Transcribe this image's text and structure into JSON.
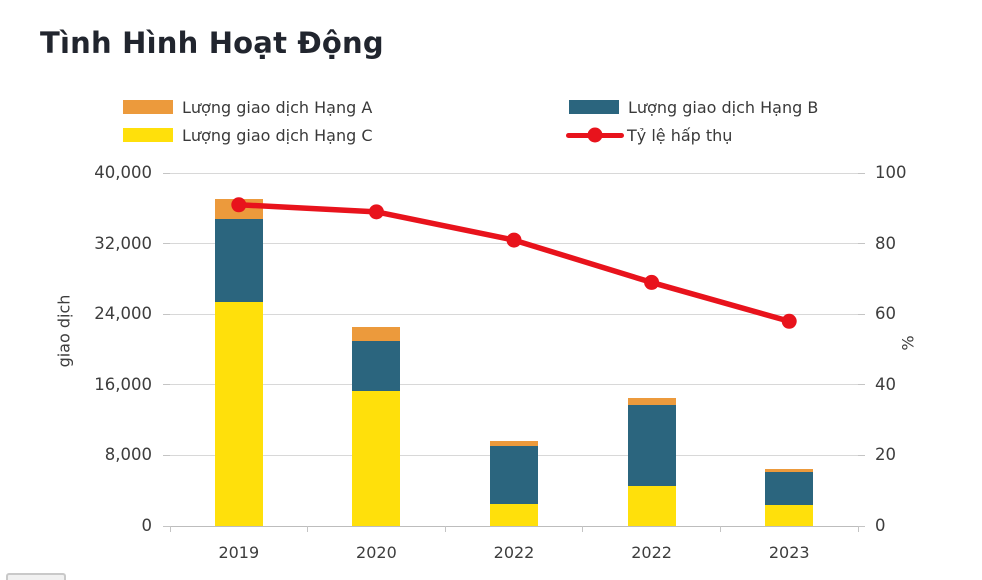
{
  "title": "Tình Hình Hoạt Động",
  "legend": {
    "items": [
      {
        "label": "Lượng giao dịch Hạng A",
        "color": "#EC9A3C",
        "marker": "rect"
      },
      {
        "label": "Lượng giao dịch Hạng B",
        "color": "#2B657E",
        "marker": "rect"
      },
      {
        "label": "Lượng giao dịch Hạng C",
        "color": "#FFE00B",
        "marker": "rect"
      },
      {
        "label": "Tỷ lệ hấp thụ",
        "color": "#E8131C",
        "marker": "line-dot"
      }
    ]
  },
  "chart_data": {
    "type": "combo",
    "subtype": "stacked-bar-plus-line",
    "categories": [
      "2019",
      "2020",
      "2022",
      "2022",
      "2023"
    ],
    "series": [
      {
        "name": "Lượng giao dịch Hạng A",
        "type": "bar",
        "color": "#EC9A3C",
        "values": [
          2300,
          1500,
          550,
          750,
          270
        ]
      },
      {
        "name": "Lượng giao dịch Hạng B",
        "type": "bar",
        "color": "#2B657E",
        "values": [
          9400,
          5700,
          6600,
          9200,
          3800
        ]
      },
      {
        "name": "Lượng giao dịch Hạng C",
        "type": "bar",
        "color": "#FFE00B",
        "values": [
          25400,
          15300,
          2450,
          4550,
          2350
        ]
      },
      {
        "name": "Tỷ lệ hấp thụ",
        "type": "line",
        "axis": "right",
        "color": "#E8131C",
        "values": [
          91,
          89,
          81,
          69,
          58
        ]
      }
    ],
    "bar_stack_order": [
      2,
      1,
      0
    ],
    "left_axis": {
      "label": "giao dịch",
      "min": 0,
      "max": 40000,
      "ticks": [
        "0",
        "8,000",
        "16,000",
        "24,000",
        "32,000",
        "40,000"
      ]
    },
    "right_axis": {
      "label": "%",
      "min": 0,
      "max": 100,
      "ticks": [
        "0",
        "20",
        "40",
        "60",
        "80",
        "100"
      ]
    },
    "grid": "horizontal",
    "legend_position": "top"
  }
}
